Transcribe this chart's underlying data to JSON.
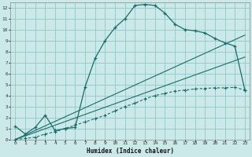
{
  "xlabel": "Humidex (Indice chaleur)",
  "ylabel": "",
  "xlim": [
    -0.5,
    23.5
  ],
  "ylim": [
    0,
    12.5
  ],
  "xticks": [
    0,
    1,
    2,
    3,
    4,
    5,
    6,
    7,
    8,
    9,
    10,
    11,
    12,
    13,
    14,
    15,
    16,
    17,
    18,
    19,
    20,
    21,
    22,
    23
  ],
  "yticks": [
    0,
    1,
    2,
    3,
    4,
    5,
    6,
    7,
    8,
    9,
    10,
    11,
    12
  ],
  "background_color": "#cce9ea",
  "grid_color": "#99ccce",
  "line_color": "#1a6b6b",
  "line1_x": [
    0,
    1,
    2,
    3,
    4,
    5,
    6,
    7,
    8,
    9,
    10,
    11,
    12,
    13,
    14,
    15,
    16,
    17,
    18,
    19,
    20,
    21,
    22,
    23
  ],
  "line1_y": [
    1.2,
    0.5,
    1.1,
    2.2,
    0.8,
    1.0,
    1.1,
    4.8,
    7.4,
    9.0,
    10.2,
    11.0,
    12.2,
    12.3,
    12.2,
    11.5,
    10.5,
    10.0,
    9.9,
    9.7,
    9.2,
    8.8,
    8.5,
    4.5
  ],
  "line2_x": [
    0,
    1,
    2,
    3,
    4,
    5,
    6,
    7,
    8,
    9,
    10,
    11,
    12,
    13,
    14,
    15,
    16,
    17,
    18,
    19,
    20,
    21,
    22,
    23
  ],
  "line2_y": [
    0.0,
    0.1,
    0.2,
    0.5,
    0.7,
    1.0,
    1.3,
    1.6,
    1.9,
    2.2,
    2.6,
    3.0,
    3.3,
    3.7,
    4.0,
    4.2,
    4.4,
    4.5,
    4.6,
    4.65,
    4.7,
    4.7,
    4.75,
    4.5
  ],
  "line3_x": [
    0,
    23
  ],
  "line3_y": [
    0.0,
    9.5
  ],
  "line4_x": [
    0,
    23
  ],
  "line4_y": [
    0.0,
    7.5
  ]
}
